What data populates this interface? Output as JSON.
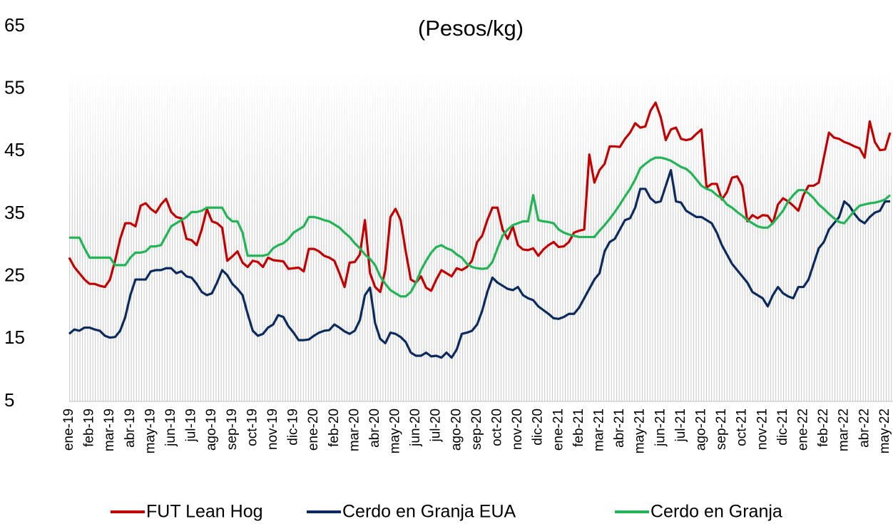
{
  "chart_data": {
    "type": "line",
    "title": "(Pesos/kg)",
    "categories": [
      "ene-19",
      null,
      null,
      null,
      "feb-19",
      null,
      null,
      null,
      "mar-19",
      null,
      null,
      null,
      "abr-19",
      null,
      null,
      null,
      "may-19",
      null,
      null,
      null,
      "jun-19",
      null,
      null,
      null,
      "jul-19",
      null,
      null,
      null,
      "ago-19",
      null,
      null,
      null,
      "sep-19",
      null,
      null,
      null,
      "oct-19",
      null,
      null,
      null,
      "nov-19",
      null,
      null,
      null,
      "dic-19",
      null,
      null,
      null,
      "ene-20",
      null,
      null,
      null,
      "feb-20",
      null,
      null,
      null,
      "mar-20",
      null,
      null,
      null,
      "abr-20",
      null,
      null,
      null,
      "may-20",
      null,
      null,
      null,
      "jun-20",
      null,
      null,
      null,
      "jul-20",
      null,
      null,
      null,
      "ago-20",
      null,
      null,
      null,
      "sep-20",
      null,
      null,
      null,
      "oct-20",
      null,
      null,
      null,
      "nov-20",
      null,
      null,
      null,
      "dic-20",
      null,
      null,
      null,
      "ene-21",
      null,
      null,
      null,
      "feb-21",
      null,
      null,
      null,
      "mar-21",
      null,
      null,
      null,
      "abr-21",
      null,
      null,
      null,
      "may-21",
      null,
      null,
      null,
      "jun-21",
      null,
      null,
      null,
      "jul-21",
      null,
      null,
      null,
      "ago-21",
      null,
      null,
      null,
      "sep-21",
      null,
      null,
      null,
      "oct-21",
      null,
      null,
      null,
      "nov-21",
      null,
      null,
      null,
      "dic-21",
      null,
      null,
      null,
      "ene-22",
      null,
      null,
      null,
      "feb-22",
      null,
      null,
      null,
      "mar-22",
      null,
      null,
      null,
      "abr-22",
      null,
      null,
      null,
      "may-22",
      null
    ],
    "series": [
      {
        "name": "FUT Lean Hog",
        "color": "#c00000",
        "values": [
          28,
          26.5,
          25.5,
          24.5,
          23.8,
          23.8,
          23.5,
          23.3,
          24.5,
          27.5,
          31,
          33.5,
          33.5,
          33,
          36.3,
          36.7,
          35.8,
          35.2,
          36.5,
          37.4,
          35.3,
          34.5,
          34.3,
          31,
          30.8,
          30,
          32.5,
          35.8,
          33.8,
          33.5,
          32.8,
          27.5,
          28.2,
          29,
          27.2,
          26.5,
          27.5,
          27.3,
          26.5,
          28,
          27.6,
          27.5,
          27.4,
          26.2,
          26.3,
          26.4,
          25.8,
          29.4,
          29.4,
          29,
          28.3,
          28,
          27.5,
          25.5,
          23.3,
          27.2,
          27.3,
          28.5,
          34,
          25.5,
          23.3,
          22.5,
          26,
          34.5,
          35.8,
          34,
          29,
          24.5,
          24,
          25,
          23.2,
          22.7,
          24.5,
          26,
          25.5,
          25,
          26.3,
          26,
          26.5,
          27.5,
          30.5,
          31.5,
          34,
          36,
          36,
          32.5,
          31,
          33,
          30,
          29.3,
          29.2,
          29.5,
          28.3,
          29.3,
          30,
          30.5,
          29.7,
          29.8,
          30.5,
          32,
          32.3,
          32.5,
          44.5,
          40,
          42,
          43,
          45.8,
          45.8,
          45.7,
          47,
          48,
          49.5,
          48.8,
          49,
          51.5,
          52.8,
          50.5,
          46.8,
          48.5,
          48.8,
          47,
          46.8,
          47,
          47.8,
          48.5,
          39.2,
          39.8,
          39.8,
          37.3,
          38.5,
          40.8,
          41,
          39.5,
          33.8,
          34.8,
          34.3,
          34.8,
          34.7,
          33.5,
          36.5,
          37.5,
          37,
          36.3,
          35.5,
          38,
          39.5,
          39.5,
          40,
          44,
          48,
          47.2,
          47,
          46.5,
          46.2,
          45.8,
          45.5,
          44,
          49.8,
          46.5,
          45.2,
          45.3,
          48
        ]
      },
      {
        "name": "Cerdo en Granja EUA",
        "color": "#0d2a5e",
        "values": [
          15.8,
          16.5,
          16.3,
          16.8,
          16.8,
          16.5,
          16.3,
          15.5,
          15.2,
          15.3,
          16.3,
          18.5,
          22,
          24.5,
          24.5,
          24.5,
          25.8,
          26,
          26,
          26.3,
          26.3,
          25.5,
          25.8,
          25,
          24.8,
          23.8,
          22.5,
          22,
          22.3,
          24,
          26,
          25.2,
          23.8,
          23,
          22,
          19,
          16.3,
          15.5,
          15.8,
          16.8,
          17.3,
          18.8,
          18.5,
          17,
          16,
          14.8,
          14.8,
          14.9,
          15.5,
          16,
          16.3,
          16.4,
          17.3,
          16.8,
          16.2,
          15.8,
          16.3,
          18,
          22,
          23.2,
          17.5,
          15,
          14.3,
          16,
          15.8,
          15.3,
          14.5,
          12.8,
          12.3,
          12.3,
          12.8,
          12.2,
          12.3,
          12,
          12.8,
          12,
          13.3,
          15.8,
          16,
          16.3,
          17.3,
          19.5,
          22.5,
          24.8,
          24,
          23.5,
          23,
          22.8,
          23.3,
          22,
          21.5,
          21.2,
          20.2,
          19.6,
          19,
          18.3,
          18.2,
          18.5,
          19,
          19,
          20,
          21.5,
          23,
          24.5,
          25.5,
          29,
          30.5,
          31,
          32.5,
          34,
          34.3,
          36,
          39,
          39,
          37.5,
          36.8,
          37,
          39.5,
          42,
          37,
          36.8,
          35.5,
          35,
          34.5,
          34.5,
          34,
          33.5,
          32,
          30,
          28.5,
          27,
          26,
          25,
          24,
          22.5,
          22,
          21.5,
          20.2,
          22,
          23.3,
          22.3,
          21.8,
          21.5,
          23.3,
          23.3,
          24.5,
          27,
          29.5,
          30.5,
          32.5,
          33.5,
          34.5,
          37,
          36.3,
          35,
          34,
          33.5,
          34.5,
          35.2,
          35.5,
          37,
          37
        ]
      },
      {
        "name": "Cerdo en Granja",
        "color": "#22b455",
        "values": [
          31.2,
          31.2,
          31.2,
          29.5,
          28,
          28,
          28,
          28,
          28,
          26.8,
          26.8,
          26.8,
          28,
          28.8,
          28.8,
          29,
          29.8,
          29.8,
          30,
          31.5,
          33,
          33.5,
          34,
          34.5,
          35.3,
          35.3,
          35.5,
          36,
          36,
          36,
          36,
          34.5,
          33.8,
          33.8,
          32,
          28.3,
          28.3,
          28.3,
          28.3,
          28.5,
          29.5,
          30,
          30.3,
          31,
          32,
          32.5,
          33,
          34.5,
          34.5,
          34.3,
          34,
          33.8,
          33.3,
          32.8,
          32,
          31.3,
          30.3,
          29.5,
          28.5,
          27.8,
          26.8,
          25,
          23.8,
          22.8,
          22.3,
          21.8,
          21.8,
          22.5,
          24,
          26,
          27.5,
          28.8,
          29.7,
          30,
          29.5,
          29.2,
          28.5,
          28,
          27,
          26.5,
          26.3,
          26.2,
          26.3,
          27.3,
          29.5,
          31.5,
          32.5,
          33.2,
          33.5,
          33.8,
          33.8,
          38,
          34,
          33.8,
          33.7,
          33.5,
          32.5,
          32,
          31.7,
          31.5,
          31.3,
          31.3,
          31.3,
          31.3,
          32.3,
          33.2,
          34.2,
          35.3,
          36.5,
          37.8,
          39,
          40.5,
          42.3,
          43,
          43.6,
          44,
          44,
          43.8,
          43.5,
          43,
          42.5,
          42.2,
          41.5,
          40.5,
          39.5,
          39,
          38.7,
          38,
          37.5,
          36.5,
          36,
          35.3,
          34.7,
          34,
          33.5,
          33,
          32.8,
          32.8,
          33.5,
          34.5,
          35.5,
          37,
          38,
          38.8,
          38.8,
          38.3,
          37.5,
          36.5,
          35.8,
          35,
          34.3,
          33.7,
          33.5,
          34.5,
          35.5,
          36.3,
          36.5,
          36.7,
          36.8,
          37,
          37.3,
          38
        ]
      }
    ],
    "ylim": [
      5,
      65
    ],
    "yticks": [
      5,
      15,
      25,
      35,
      45,
      55,
      65
    ],
    "grid": false,
    "legend": "bottom"
  }
}
